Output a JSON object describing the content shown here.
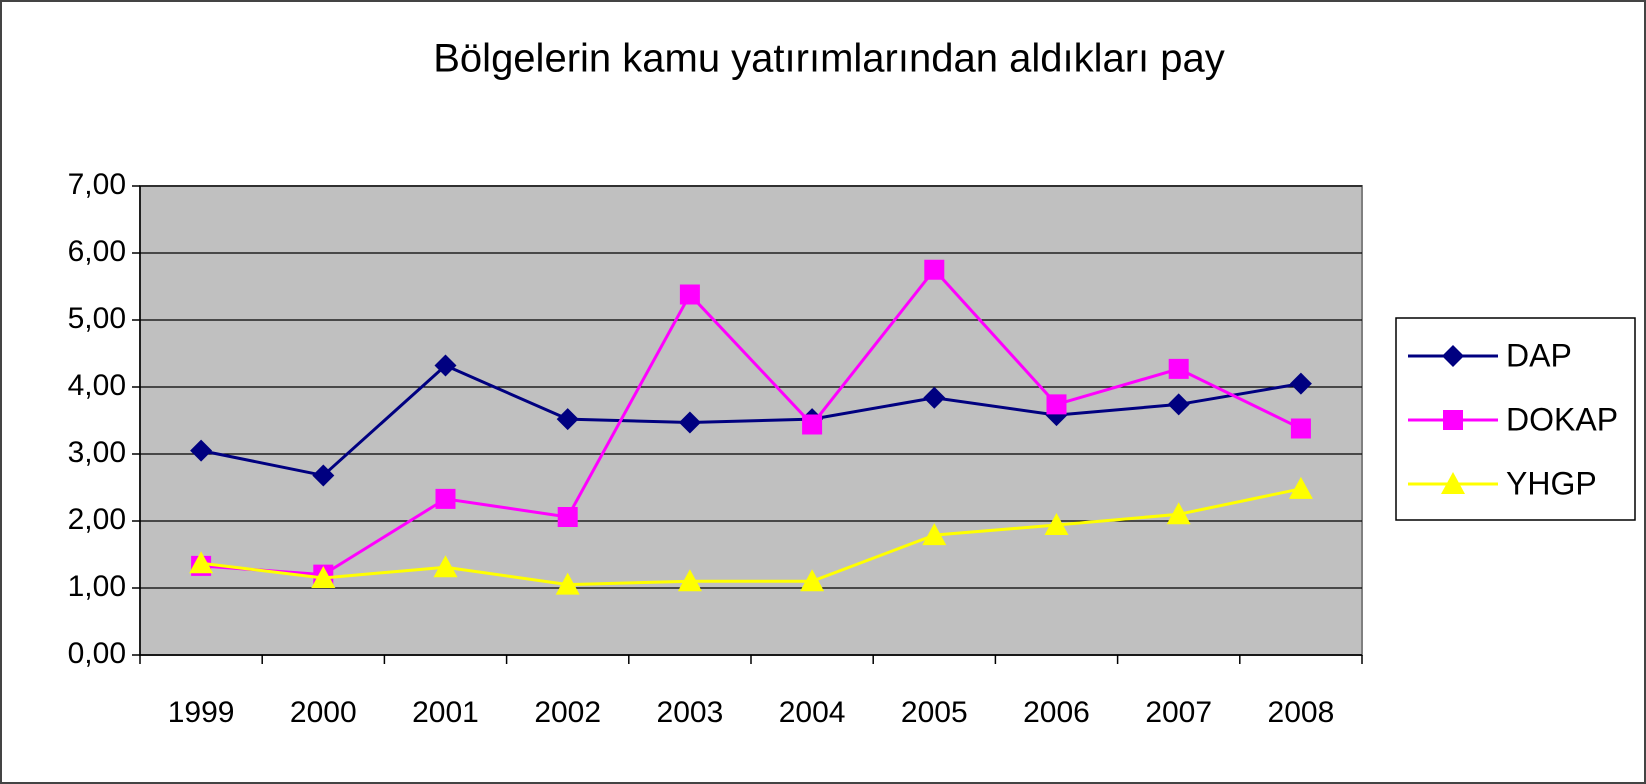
{
  "chart_data": {
    "type": "line",
    "title": "Bölgelerin kamu yatırımlarından aldıkları pay",
    "categories": [
      "1999",
      "2000",
      "2001",
      "2002",
      "2003",
      "2004",
      "2005",
      "2006",
      "2007",
      "2008"
    ],
    "series": [
      {
        "name": "DAP",
        "color": "#000080",
        "marker": "diamond",
        "values": [
          3.05,
          2.68,
          4.32,
          3.52,
          3.47,
          3.52,
          3.84,
          3.58,
          3.74,
          4.05
        ]
      },
      {
        "name": "DOKAP",
        "color": "#ff00ff",
        "marker": "square",
        "values": [
          1.33,
          1.2,
          2.33,
          2.06,
          5.38,
          3.44,
          5.75,
          3.74,
          4.27,
          3.38
        ]
      },
      {
        "name": "YHGP",
        "color": "#ffff00",
        "marker": "triangle",
        "values": [
          1.37,
          1.15,
          1.31,
          1.05,
          1.1,
          1.1,
          1.79,
          1.94,
          2.1,
          2.48
        ]
      }
    ],
    "ylim": [
      0,
      7
    ],
    "yticks": [
      {
        "value": 0,
        "label": "0,00"
      },
      {
        "value": 1,
        "label": "1,00"
      },
      {
        "value": 2,
        "label": "2,00"
      },
      {
        "value": 3,
        "label": "3,00"
      },
      {
        "value": 4,
        "label": "4,00"
      },
      {
        "value": 5,
        "label": "5,00"
      },
      {
        "value": 6,
        "label": "6,00"
      },
      {
        "value": 7,
        "label": "7,00"
      }
    ],
    "grid": true,
    "plot_background": "#c0c0c0",
    "legend": "right"
  }
}
